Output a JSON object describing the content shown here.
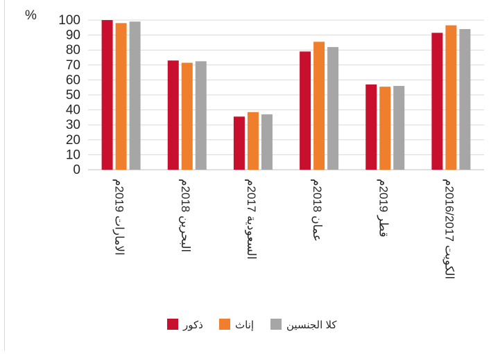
{
  "chart_data": {
    "type": "bar",
    "ylabel": "%",
    "ylim": [
      0,
      100
    ],
    "yticks": [
      0,
      10,
      20,
      30,
      40,
      50,
      60,
      70,
      80,
      90,
      100
    ],
    "grid": true,
    "legend_position": "bottom",
    "categories": [
      "الامارات 2019م",
      "البحرين 2018م",
      "السعودية 2017م",
      "عمان 2018م",
      "قطر 2019م",
      "الكويت 2016/2017م"
    ],
    "series": [
      {
        "name": "ذكور",
        "color": "#c8102e",
        "values": [
          100,
          73,
          35.5,
          79,
          57,
          91.5
        ]
      },
      {
        "name": "إناث",
        "color": "#f07f2d",
        "values": [
          98,
          71.5,
          38.5,
          85.5,
          55.5,
          96.5
        ]
      },
      {
        "name": "كلا الجنسين",
        "color": "#a6a6a6",
        "values": [
          99,
          72.5,
          37,
          82,
          56,
          94
        ]
      }
    ]
  }
}
